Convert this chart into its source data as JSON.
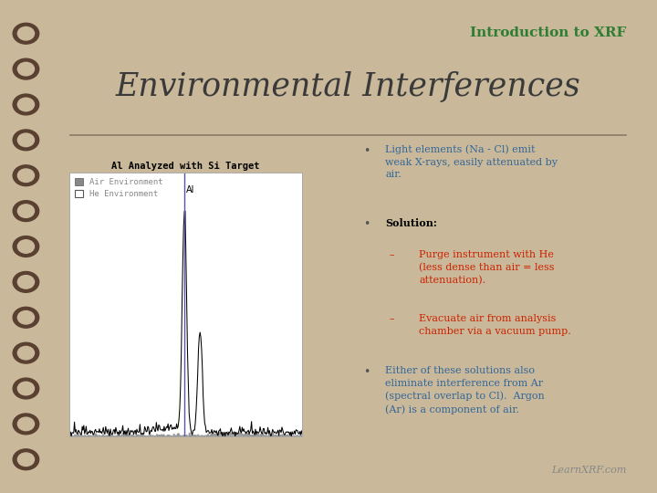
{
  "bg_color": "#c9b99a",
  "page_color": "#e8e0d0",
  "title_top": "Introduction to XRF",
  "title_top_color": "#2e7d32",
  "title_main": "Environmental Interferences",
  "title_main_color": "#3a3a3a",
  "divider_color": "#8a7a6a",
  "chart_title": "Al Analyzed with Si Target",
  "chart_title_color": "#000000",
  "legend_air": "Air Environment",
  "legend_he": "He Environment",
  "legend_color": "#888888",
  "air_fill_color": "#888888",
  "he_line_color": "#000000",
  "marker_line_color": "#5555aa",
  "marker_label": "Al",
  "bullet_color": "#555555",
  "text_blue": "#336699",
  "text_red": "#cc2200",
  "bullets": [
    {
      "color": "#336699",
      "text": "Light elements (Na - Cl) emit\nweak X-rays, easily attenuated by\nair."
    },
    {
      "color": "#000000",
      "bold": true,
      "text": "Solution:"
    },
    {
      "color": "#cc2200",
      "indent": true,
      "text": "Purge instrument with He\n(less dense than air = less\nattenuation)."
    },
    {
      "color": "#cc2200",
      "indent": true,
      "text": "Evacuate air from analysis\nchamber via a vacuum pump."
    },
    {
      "color": "#336699",
      "text": "Either of these solutions also\neliminate interference from Ar\n(spectral overlap to Cl).  Argon\n(Ar) is a component of air."
    }
  ],
  "watermark": "LearnXRF.com",
  "watermark_color": "#888888"
}
